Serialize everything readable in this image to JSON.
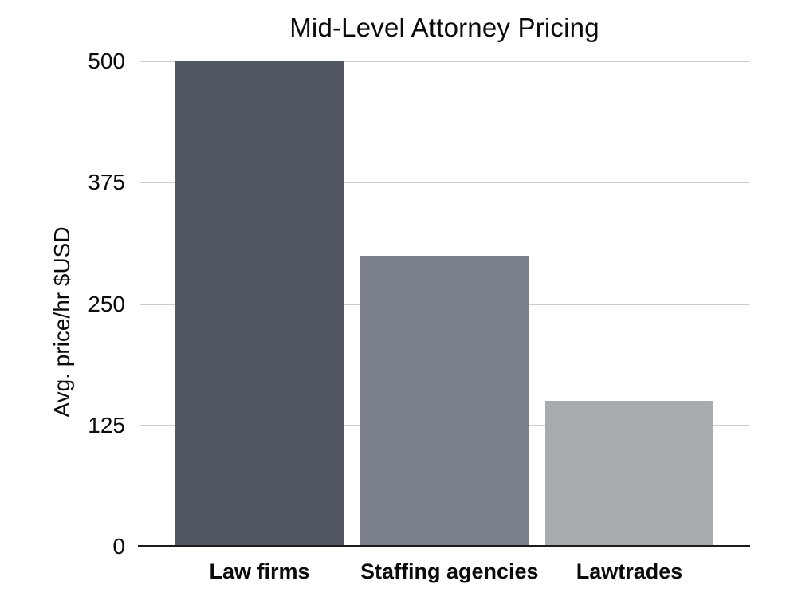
{
  "chart_data": {
    "type": "bar",
    "title": "Mid-Level Attorney Pricing",
    "categories": [
      "Law firms",
      "Staffing agencies",
      "Lawtrades"
    ],
    "values": [
      500,
      300,
      150
    ],
    "bar_colors": [
      "#515761",
      "#798089",
      "#A7ABB0"
    ],
    "xlabel": "",
    "ylabel": "Avg. price/hr $USD",
    "yticks": [
      0,
      125,
      250,
      375,
      500
    ],
    "ylim": [
      0,
      500
    ],
    "grid": "horizontal-only",
    "legend": "none",
    "colors": {
      "background": "#ffffff",
      "gridline": "#cccccc",
      "axis_line": "#1c1c1c",
      "text": "#0b0b0b"
    }
  }
}
